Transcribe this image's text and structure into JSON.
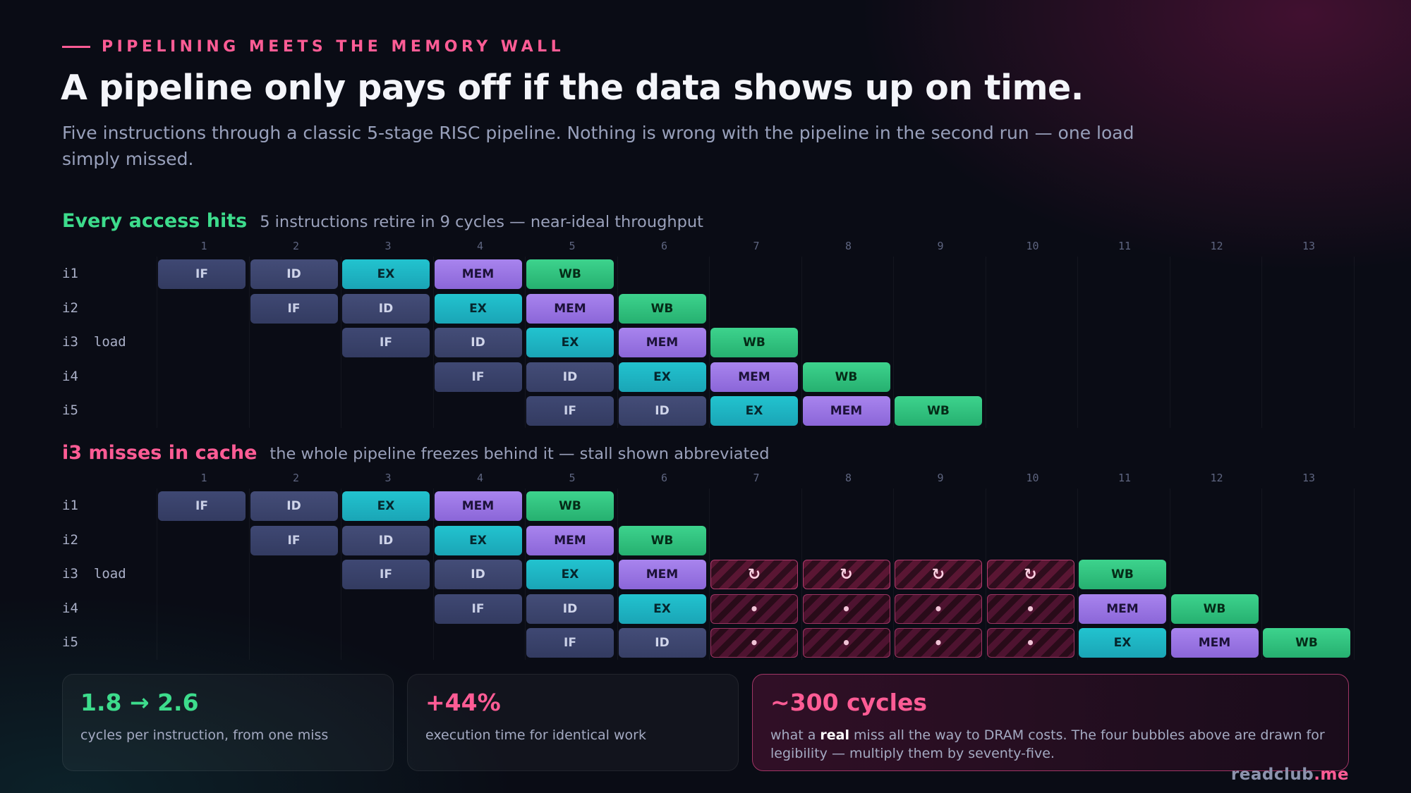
{
  "eyebrow": "PIPELINING MEETS THE MEMORY WALL",
  "title": "A pipeline only pays off if the data shows up on time.",
  "subtitle": "Five instructions through a classic 5-stage RISC pipeline. Nothing is wrong with the pipeline in the second run — one load simply missed.",
  "colors": {
    "IF": "#3a4370",
    "ID": "#3f4873",
    "EX": "#1fb6c4",
    "MEM": "#9b76e4",
    "WB": "#33c47f",
    "stall": "#5a1633",
    "accent_pink": "#ff5c95",
    "accent_green": "#3ddc8c"
  },
  "cycles": [
    "1",
    "2",
    "3",
    "4",
    "5",
    "6",
    "7",
    "8",
    "9",
    "10",
    "11",
    "12",
    "13"
  ],
  "stall_icon": "↻",
  "bubble_icon": "•",
  "sections": [
    {
      "name": "Every access hits",
      "name_color": "#3ddc8c",
      "desc": "5 instructions retire in 9 cycles — near-ideal throughput",
      "rows": [
        {
          "label": "i1",
          "tag": "",
          "start": 0,
          "stages": [
            "IF",
            "ID",
            "EX",
            "MEM",
            "WB"
          ]
        },
        {
          "label": "i2",
          "tag": "",
          "start": 1,
          "stages": [
            "IF",
            "ID",
            "EX",
            "MEM",
            "WB"
          ]
        },
        {
          "label": "i3",
          "tag": "load",
          "start": 2,
          "stages": [
            "IF",
            "ID",
            "EX",
            "MEM",
            "WB"
          ]
        },
        {
          "label": "i4",
          "tag": "",
          "start": 3,
          "stages": [
            "IF",
            "ID",
            "EX",
            "MEM",
            "WB"
          ]
        },
        {
          "label": "i5",
          "tag": "",
          "start": 4,
          "stages": [
            "IF",
            "ID",
            "EX",
            "MEM",
            "WB"
          ]
        }
      ]
    },
    {
      "name": "i3 misses in cache",
      "name_color": "#ff5c95",
      "desc": "the whole pipeline freezes behind it — stall shown abbreviated",
      "rows": [
        {
          "label": "i1",
          "tag": "",
          "start": 0,
          "stages": [
            "IF",
            "ID",
            "EX",
            "MEM",
            "WB"
          ]
        },
        {
          "label": "i2",
          "tag": "",
          "start": 1,
          "stages": [
            "IF",
            "ID",
            "EX",
            "MEM",
            "WB"
          ]
        },
        {
          "label": "i3",
          "tag": "load",
          "start": 2,
          "stages": [
            "IF",
            "ID",
            "EX",
            "MEM",
            "STALL",
            "STALL",
            "STALL",
            "STALL",
            "WB"
          ]
        },
        {
          "label": "i4",
          "tag": "",
          "start": 3,
          "stages": [
            "IF",
            "ID",
            "EX",
            "BUB",
            "BUB",
            "BUB",
            "BUB",
            "MEM",
            "WB"
          ]
        },
        {
          "label": "i5",
          "tag": "",
          "start": 4,
          "stages": [
            "IF",
            "ID",
            "BUB",
            "BUB",
            "BUB",
            "BUB",
            "EX",
            "MEM",
            "WB"
          ]
        }
      ]
    }
  ],
  "stats": [
    {
      "big": "1.8 → 2.6",
      "color": "#3ddc8c",
      "small_pre": "cycles per instruction, from one miss",
      "small_bold": "",
      "small_post": ""
    },
    {
      "big": "+44%",
      "color": "#ff5c95",
      "small_pre": "execution time for identical work",
      "small_bold": "",
      "small_post": ""
    },
    {
      "big": "~300 cycles",
      "color": "#ff5c95",
      "small_pre": "what a ",
      "small_bold": "real",
      "small_post": " miss all the way to DRAM costs. The four bubbles above are drawn for legibility — multiply them by seventy-five."
    }
  ],
  "brand": {
    "main": "readclub",
    "suffix": ".me"
  }
}
